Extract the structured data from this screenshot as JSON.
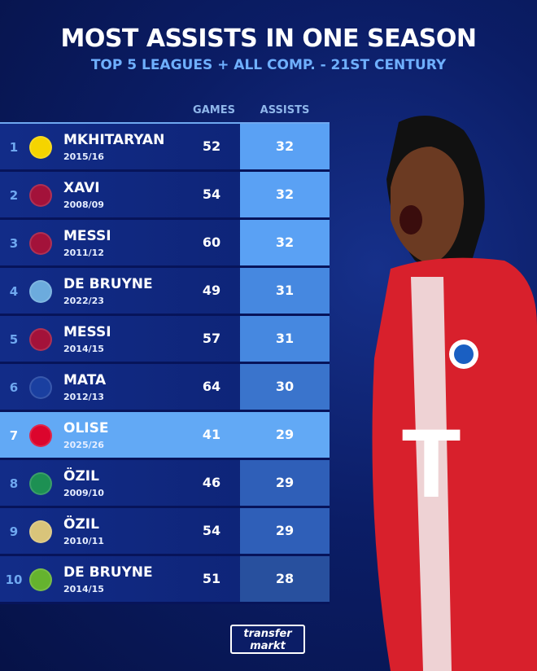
{
  "title": "MOST ASSISTS IN ONE SEASON",
  "subtitle": "TOP 5 LEAGUES + ALL COMP. - 21ST CENTURY",
  "columns": {
    "games": "GAMES",
    "assists": "ASSISTS"
  },
  "rows": [
    {
      "rank": "1",
      "name": "MKHITARYAN",
      "season": "2015/16",
      "games": "52",
      "assists": "32",
      "club": "dortmund-crest",
      "color": "#5aa1f4"
    },
    {
      "rank": "2",
      "name": "XAVI",
      "season": "2008/09",
      "games": "54",
      "assists": "32",
      "club": "barcelona-crest",
      "color": "#5aa1f4"
    },
    {
      "rank": "3",
      "name": "MESSI",
      "season": "2011/12",
      "games": "60",
      "assists": "32",
      "club": "barcelona-crest",
      "color": "#5aa1f4"
    },
    {
      "rank": "4",
      "name": "DE BRUYNE",
      "season": "2022/23",
      "games": "49",
      "assists": "31",
      "club": "man-city-crest",
      "color": "#4688e0"
    },
    {
      "rank": "5",
      "name": "MESSI",
      "season": "2014/15",
      "games": "57",
      "assists": "31",
      "club": "barcelona-crest",
      "color": "#4688e0"
    },
    {
      "rank": "6",
      "name": "MATA",
      "season": "2012/13",
      "games": "64",
      "assists": "30",
      "club": "chelsea-crest",
      "color": "#3a74cc"
    },
    {
      "rank": "7",
      "name": "OLISE",
      "season": "2025/26",
      "games": "41",
      "assists": "29",
      "club": "bayern-crest",
      "color": "#62a9f5",
      "highlight": true
    },
    {
      "rank": "8",
      "name": "ÖZIL",
      "season": "2009/10",
      "games": "46",
      "assists": "29",
      "club": "werder-crest",
      "color": "#2f5fb8"
    },
    {
      "rank": "9",
      "name": "ÖZIL",
      "season": "2010/11",
      "games": "54",
      "assists": "29",
      "club": "real-madrid-werder-crest",
      "color": "#2f5fb8"
    },
    {
      "rank": "10",
      "name": "DE BRUYNE",
      "season": "2014/15",
      "games": "51",
      "assists": "28",
      "club": "wolfsburg-crest",
      "color": "#28509e"
    }
  ],
  "logo": {
    "line1": "transfer",
    "line2": "markt"
  }
}
